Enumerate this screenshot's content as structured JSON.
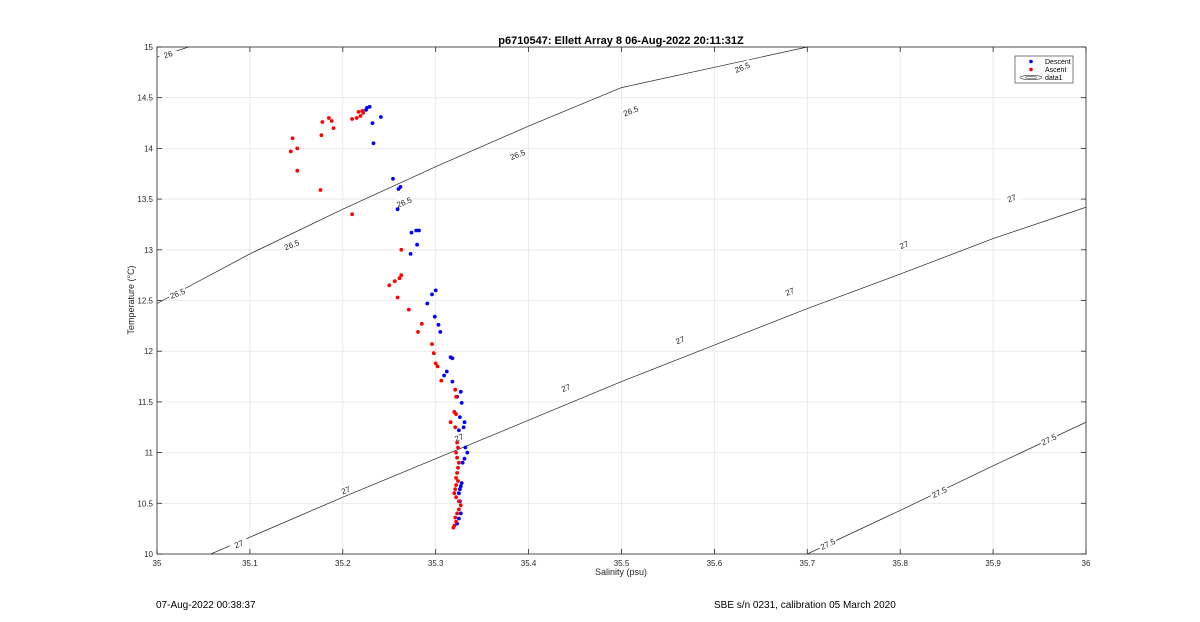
{
  "chart_data": {
    "type": "scatter",
    "title": "p6710547: Ellett Array 8 06-Aug-2022 20:11:31Z",
    "xlabel": "Salinity (psu)",
    "ylabel": "Temperature (°C)",
    "xlim": [
      35,
      36
    ],
    "ylim": [
      10,
      15
    ],
    "x_ticks": [
      "35",
      "35.1",
      "35.2",
      "35.3",
      "35.4",
      "35.5",
      "35.6",
      "35.7",
      "35.8",
      "35.9",
      "36"
    ],
    "y_ticks": [
      "10",
      "10.5",
      "11",
      "11.5",
      "12",
      "12.5",
      "13",
      "13.5",
      "14",
      "14.5",
      "15"
    ],
    "grid": true,
    "legend_position": "top-right",
    "legend": [
      "Descent",
      "Ascent",
      "data1"
    ],
    "series": [
      {
        "name": "Descent",
        "color": "#0000ff",
        "points": [
          [
            35.226,
            14.4
          ],
          [
            35.229,
            14.41
          ],
          [
            35.225,
            14.38
          ],
          [
            35.241,
            14.31
          ],
          [
            35.232,
            14.25
          ],
          [
            35.233,
            14.05
          ],
          [
            35.254,
            13.7
          ],
          [
            35.26,
            13.6
          ],
          [
            35.262,
            13.62
          ],
          [
            35.259,
            13.4
          ],
          [
            35.274,
            13.17
          ],
          [
            35.279,
            13.19
          ],
          [
            35.282,
            13.19
          ],
          [
            35.28,
            13.05
          ],
          [
            35.273,
            12.96
          ],
          [
            35.296,
            12.56
          ],
          [
            35.3,
            12.6
          ],
          [
            35.291,
            12.47
          ],
          [
            35.299,
            12.34
          ],
          [
            35.303,
            12.26
          ],
          [
            35.305,
            12.19
          ],
          [
            35.316,
            11.94
          ],
          [
            35.318,
            11.93
          ],
          [
            35.312,
            11.8
          ],
          [
            35.309,
            11.76
          ],
          [
            35.318,
            11.7
          ],
          [
            35.327,
            11.6
          ],
          [
            35.323,
            11.55
          ],
          [
            35.328,
            11.49
          ],
          [
            35.32,
            11.4
          ],
          [
            35.326,
            11.35
          ],
          [
            35.331,
            11.3
          ],
          [
            35.33,
            11.25
          ],
          [
            35.325,
            11.22
          ],
          [
            35.332,
            11.05
          ],
          [
            35.334,
            11.0
          ],
          [
            35.331,
            10.94
          ],
          [
            35.329,
            10.9
          ],
          [
            35.328,
            10.7
          ],
          [
            35.327,
            10.67
          ],
          [
            35.326,
            10.64
          ],
          [
            35.325,
            10.6
          ],
          [
            35.326,
            10.52
          ],
          [
            35.327,
            10.4
          ],
          [
            35.325,
            10.35
          ],
          [
            35.323,
            10.3
          ]
        ]
      },
      {
        "name": "Ascent",
        "color": "#ff0000",
        "points": [
          [
            35.217,
            14.36
          ],
          [
            35.221,
            14.37
          ],
          [
            35.222,
            14.35
          ],
          [
            35.215,
            14.3
          ],
          [
            35.219,
            14.32
          ],
          [
            35.21,
            14.29
          ],
          [
            35.185,
            14.3
          ],
          [
            35.188,
            14.27
          ],
          [
            35.178,
            14.26
          ],
          [
            35.19,
            14.2
          ],
          [
            35.177,
            14.13
          ],
          [
            35.146,
            14.1
          ],
          [
            35.151,
            14.0
          ],
          [
            35.144,
            13.97
          ],
          [
            35.151,
            13.78
          ],
          [
            35.176,
            13.59
          ],
          [
            35.21,
            13.35
          ],
          [
            35.263,
            13.0
          ],
          [
            35.263,
            12.75
          ],
          [
            35.261,
            12.72
          ],
          [
            35.256,
            12.69
          ],
          [
            35.25,
            12.65
          ],
          [
            35.259,
            12.53
          ],
          [
            35.271,
            12.41
          ],
          [
            35.285,
            12.27
          ],
          [
            35.281,
            12.19
          ],
          [
            35.296,
            12.07
          ],
          [
            35.298,
            11.98
          ],
          [
            35.3,
            11.88
          ],
          [
            35.302,
            11.85
          ],
          [
            35.306,
            11.71
          ],
          [
            35.321,
            11.62
          ],
          [
            35.322,
            11.55
          ],
          [
            35.32,
            11.4
          ],
          [
            35.322,
            11.38
          ],
          [
            35.316,
            11.3
          ],
          [
            35.321,
            11.25
          ],
          [
            35.323,
            11.1
          ],
          [
            35.324,
            11.05
          ],
          [
            35.322,
            11.0
          ],
          [
            35.323,
            10.95
          ],
          [
            35.325,
            10.9
          ],
          [
            35.324,
            10.85
          ],
          [
            35.323,
            10.8
          ],
          [
            35.322,
            10.75
          ],
          [
            35.324,
            10.72
          ],
          [
            35.322,
            10.68
          ],
          [
            35.321,
            10.64
          ],
          [
            35.32,
            10.6
          ],
          [
            35.322,
            10.56
          ],
          [
            35.325,
            10.52
          ],
          [
            35.327,
            10.48
          ],
          [
            35.325,
            10.44
          ],
          [
            35.323,
            10.4
          ],
          [
            35.321,
            10.36
          ],
          [
            35.322,
            10.32
          ],
          [
            35.32,
            10.28
          ],
          [
            35.319,
            10.26
          ]
        ]
      }
    ],
    "contours": [
      {
        "level": "26",
        "points": [
          [
            35.0,
            14.9
          ],
          [
            35.034,
            15.0
          ]
        ],
        "labels": [
          {
            "text": "26",
            "x": 35.012,
            "y": 14.93
          }
        ]
      },
      {
        "level": "26.5",
        "points": [
          [
            35.0,
            12.47
          ],
          [
            35.1,
            12.96
          ],
          [
            35.2,
            13.4
          ],
          [
            35.3,
            13.82
          ],
          [
            35.4,
            14.22
          ],
          [
            35.5,
            14.6
          ],
          [
            35.7,
            15.0
          ]
        ],
        "labels": [
          {
            "text": "26.5",
            "x": 35.022,
            "y": 12.57
          },
          {
            "text": "26.5",
            "x": 35.145,
            "y": 13.05
          },
          {
            "text": "26.5",
            "x": 35.266,
            "y": 13.47
          },
          {
            "text": "26.5",
            "x": 35.388,
            "y": 13.94
          },
          {
            "text": "26.5",
            "x": 35.51,
            "y": 14.37
          },
          {
            "text": "26.5",
            "x": 35.63,
            "y": 14.8
          }
        ]
      },
      {
        "level": "27",
        "points": [
          [
            35.058,
            10.0
          ],
          [
            35.2,
            10.56
          ],
          [
            35.3,
            10.94
          ],
          [
            35.4,
            11.32
          ],
          [
            35.5,
            11.7
          ],
          [
            35.6,
            12.06
          ],
          [
            35.7,
            12.42
          ],
          [
            35.8,
            12.76
          ],
          [
            35.9,
            13.11
          ],
          [
            36.0,
            13.42
          ]
        ],
        "labels": [
          {
            "text": "27",
            "x": 35.088,
            "y": 10.1
          },
          {
            "text": "27",
            "x": 35.203,
            "y": 10.63
          },
          {
            "text": "27",
            "x": 35.325,
            "y": 11.15
          },
          {
            "text": "27",
            "x": 35.44,
            "y": 11.64
          },
          {
            "text": "27",
            "x": 35.563,
            "y": 12.11
          },
          {
            "text": "27",
            "x": 35.681,
            "y": 12.59
          },
          {
            "text": "27",
            "x": 35.804,
            "y": 13.05
          },
          {
            "text": "27",
            "x": 35.92,
            "y": 13.51
          }
        ]
      },
      {
        "level": "27.5",
        "points": [
          [
            35.7,
            10.0
          ],
          [
            35.8,
            10.43
          ],
          [
            35.9,
            10.87
          ],
          [
            36.0,
            11.3
          ]
        ],
        "labels": [
          {
            "text": "27.5",
            "x": 35.722,
            "y": 10.1
          },
          {
            "text": "27.5",
            "x": 35.842,
            "y": 10.61
          },
          {
            "text": "27.5",
            "x": 35.96,
            "y": 11.13
          }
        ]
      }
    ]
  },
  "footer": {
    "timestamp": "07-Aug-2022 00:38:37",
    "calibration": "SBE s/n 0231, calibration 05 March 2020"
  }
}
